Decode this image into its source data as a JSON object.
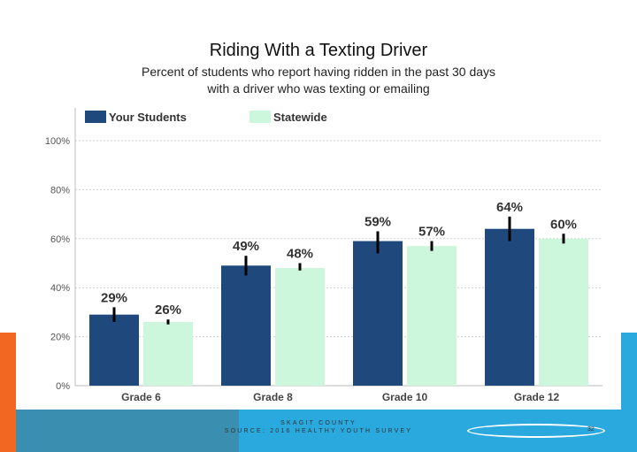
{
  "title": "Riding With a Texting Driver",
  "subtitle": "Percent of students who report having ridden in the past 30 days\nwith a driver who was texting or emailing",
  "footer": {
    "line1": "SKAGIT COUNTY",
    "line2": "SOURCE: 2016 HEALTHY YOUTH SURVEY",
    "page_number": "32"
  },
  "colors": {
    "your_students": "#1f497d",
    "statewide": "#cdf7dc",
    "orange_accent": "#f26722",
    "teal_accent": "#3a8fb0",
    "blue_accent": "#2aa9df"
  },
  "chart_data": {
    "type": "bar",
    "title": "",
    "xlabel": "",
    "ylabel": "",
    "categories": [
      "Grade 6",
      "Grade 8",
      "Grade 10",
      "Grade 12"
    ],
    "ylim": [
      0,
      100
    ],
    "yticks": [
      "0%",
      "20%",
      "40%",
      "60%",
      "80%",
      "100%"
    ],
    "grid": true,
    "legend": "top-left",
    "series": [
      {
        "name": "Your Students",
        "values": [
          29,
          49,
          59,
          64
        ],
        "labels": [
          "29%",
          "49%",
          "59%",
          "64%"
        ],
        "error_bars": [
          [
            26,
            32
          ],
          [
            45,
            53
          ],
          [
            54,
            63
          ],
          [
            59,
            69
          ]
        ]
      },
      {
        "name": "Statewide",
        "values": [
          26,
          48,
          57,
          60
        ],
        "labels": [
          "26%",
          "48%",
          "57%",
          "60%"
        ],
        "error_bars": [
          [
            25,
            27
          ],
          [
            47,
            50
          ],
          [
            55,
            59
          ],
          [
            58,
            62
          ]
        ]
      }
    ]
  }
}
